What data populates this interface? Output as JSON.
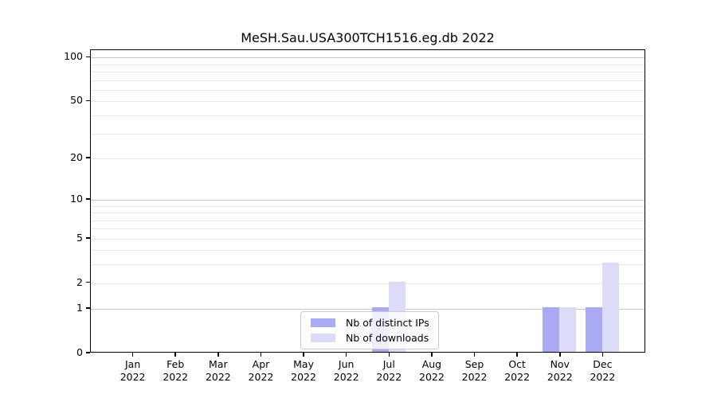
{
  "figure": {
    "title": "MeSH.Sau.USA300TCH1516.eg.db 2022",
    "background": "#ffffff"
  },
  "chart_data": {
    "type": "bar",
    "title": "MeSH.Sau.USA300TCH1516.eg.db 2022",
    "categories": [
      "Jan",
      "Feb",
      "Mar",
      "Apr",
      "May",
      "Jun",
      "Jul",
      "Aug",
      "Sep",
      "Oct",
      "Nov",
      "Dec"
    ],
    "year": "2022",
    "series": [
      {
        "name": "Nb of distinct IPs",
        "color": "#aaaaf2",
        "values": [
          0,
          0,
          0,
          0,
          0,
          0,
          1,
          0,
          0,
          0,
          1,
          1
        ]
      },
      {
        "name": "Nb of downloads",
        "color": "#dcdcf8",
        "values": [
          0,
          0,
          0,
          0,
          0,
          0,
          2,
          0,
          0,
          0,
          1,
          3
        ]
      }
    ],
    "xlabel": "",
    "ylabel": "",
    "y_scale": "log1p",
    "ylim": [
      0,
      112
    ],
    "y_ticks": [
      {
        "value": 0,
        "label": "0"
      },
      {
        "value": 1,
        "label": "1"
      },
      {
        "value": 2,
        "label": "2"
      },
      {
        "value": 5,
        "label": "5"
      },
      {
        "value": 10,
        "label": "10"
      },
      {
        "value": 20,
        "label": "20"
      },
      {
        "value": 50,
        "label": "50"
      },
      {
        "value": 100,
        "label": "100"
      }
    ],
    "grid": {
      "major_values": [
        1,
        10,
        100
      ],
      "minor_values": [
        2,
        3,
        4,
        5,
        6,
        7,
        8,
        9,
        20,
        30,
        40,
        50,
        60,
        70,
        80,
        90
      ],
      "major_color": "#c6c6c6",
      "minor_color": "#e9e9e9"
    },
    "legend": {
      "position": "bottom-center",
      "items": [
        "Nb of distinct IPs",
        "Nb of downloads"
      ]
    }
  }
}
